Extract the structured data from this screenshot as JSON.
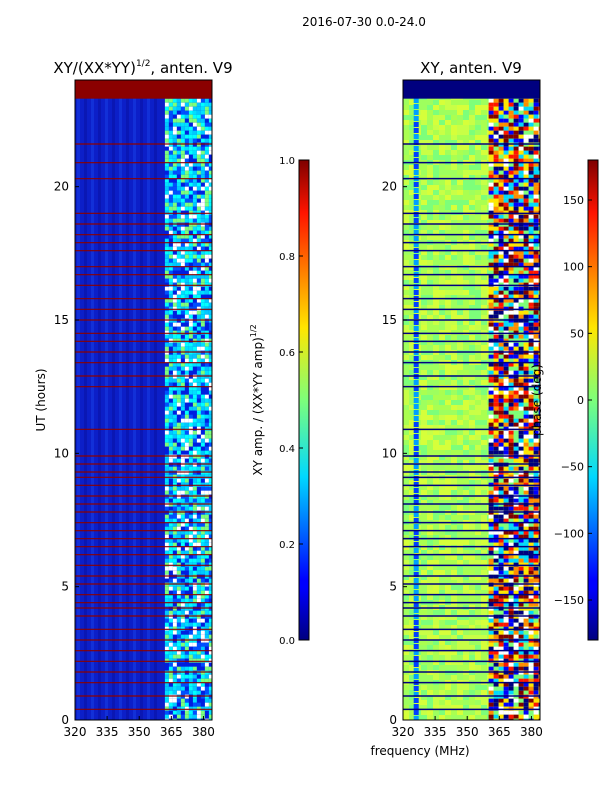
{
  "figure_title": "2016-07-30 0.0-24.0",
  "colors": {
    "red_stripe": "#8b0000",
    "jet_low": "#00007f",
    "jet_high": "#7f0000"
  },
  "chart_data": [
    {
      "type": "heatmap",
      "title_main": "XY/(XX*YY)",
      "title_exp": "1/2",
      "title_rest": ", anten. V9",
      "ylabel": "UT (hours)",
      "xlabel": "",
      "xlim": [
        320,
        384
      ],
      "ylim": [
        0,
        24
      ],
      "xticks": [
        320,
        335,
        350,
        365,
        380
      ],
      "yticks": [
        0,
        5,
        10,
        15,
        20
      ],
      "colorbar": {
        "label_main": "XY amp. / (XX*YY amp)",
        "label_exp": "1/2",
        "range": [
          0.0,
          1.0
        ],
        "ticks": [
          "0.0",
          "0.2",
          "0.4",
          "0.6",
          "0.8",
          "1.0"
        ],
        "tick_values": [
          0.0,
          0.2,
          0.4,
          0.6,
          0.8,
          1.0
        ]
      },
      "saturated_band_hours": [
        23.3,
        24.0
      ],
      "red_flag_lines_hours": [
        0.4,
        0.9,
        1.4,
        1.8,
        2.2,
        2.6,
        3.0,
        3.4,
        3.9,
        4.2,
        4.4,
        4.7,
        5.1,
        5.4,
        5.8,
        6.2,
        6.5,
        6.8,
        7.1,
        7.4,
        7.8,
        8.1,
        8.4,
        8.8,
        9.1,
        9.3,
        9.6,
        9.9,
        10.9,
        12.5,
        12.9,
        13.4,
        13.8,
        14.2,
        14.5,
        15.0,
        15.4,
        15.8,
        16.3,
        16.7,
        17.0,
        17.6,
        17.9,
        18.2,
        18.6,
        19.0,
        20.3,
        20.9,
        21.6
      ],
      "bright_region_mhz": [
        362,
        384
      ]
    },
    {
      "type": "heatmap",
      "title_main": "XY, anten. V9",
      "title_exp": "",
      "title_rest": "",
      "ylabel": "",
      "xlabel": "frequency (MHz)",
      "xlim": [
        320,
        384
      ],
      "ylim": [
        0,
        24
      ],
      "xticks": [
        320,
        335,
        350,
        365,
        380
      ],
      "yticks": [
        0,
        5,
        10,
        15,
        20
      ],
      "colorbar": {
        "label_main": "phase (deg)",
        "label_exp": "",
        "range": [
          -180,
          180
        ],
        "ticks": [
          "−150",
          "−100",
          "−50",
          "0",
          "50",
          "100",
          "150"
        ],
        "tick_values": [
          -150,
          -100,
          -50,
          0,
          50,
          100,
          150
        ]
      },
      "saturated_band_hours": [
        23.3,
        24.0
      ],
      "flag_lines_hours": [
        0.4,
        0.9,
        1.4,
        1.8,
        2.2,
        2.6,
        3.0,
        3.4,
        3.9,
        4.2,
        4.4,
        4.7,
        5.1,
        5.4,
        5.8,
        6.2,
        6.5,
        6.8,
        7.1,
        7.4,
        7.8,
        8.1,
        8.4,
        8.8,
        9.1,
        9.3,
        9.6,
        9.9,
        10.9,
        12.5,
        12.9,
        13.4,
        13.8,
        14.2,
        14.5,
        15.0,
        15.4,
        15.8,
        16.3,
        16.7,
        17.0,
        17.6,
        17.9,
        18.2,
        18.6,
        19.0,
        20.3,
        20.9,
        21.6
      ],
      "active_region_mhz": [
        360,
        384
      ]
    }
  ]
}
